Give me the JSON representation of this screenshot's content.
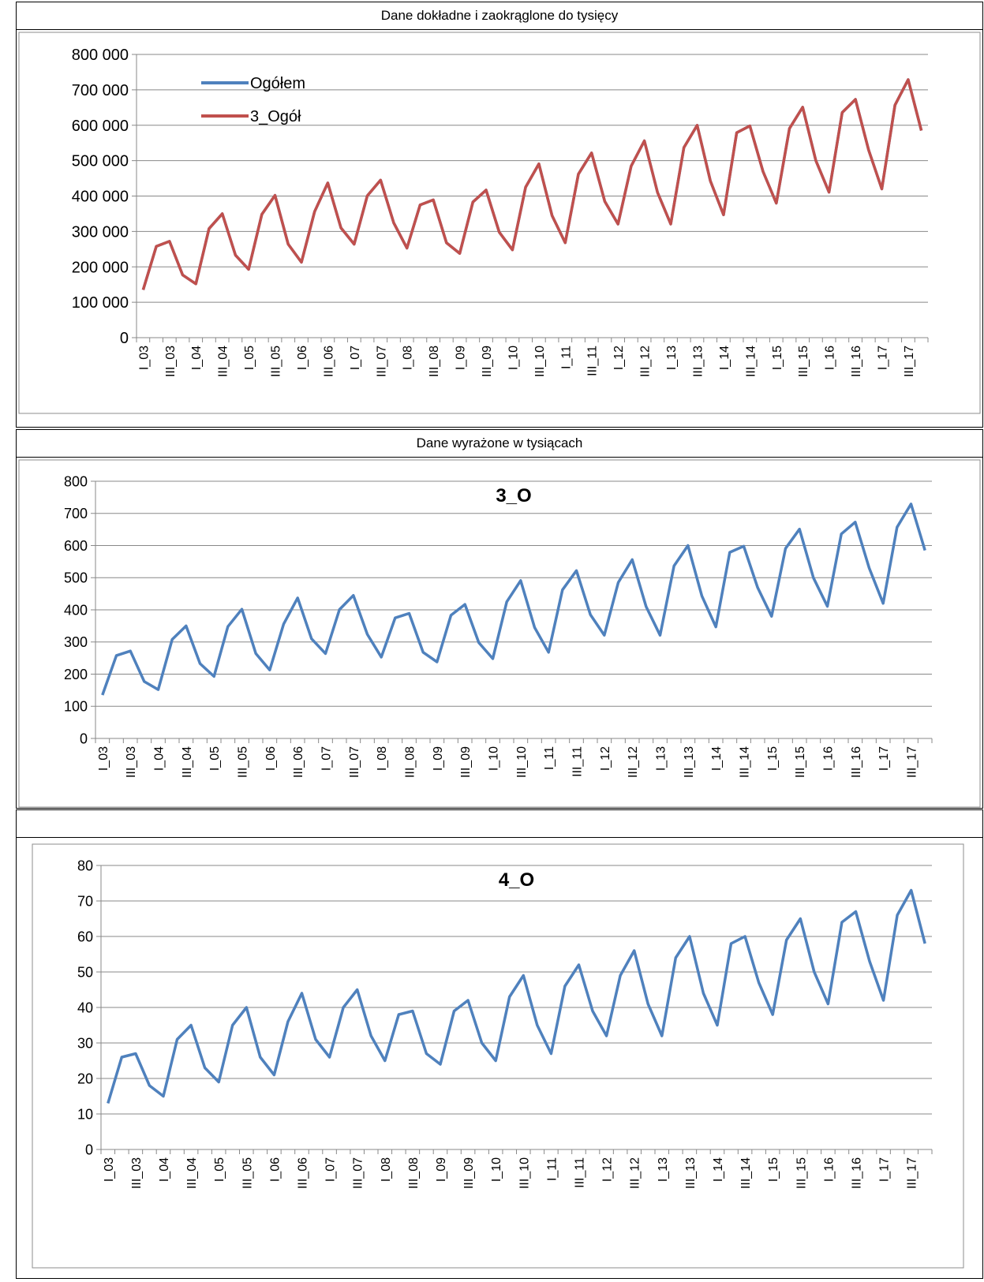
{
  "sections": [
    {
      "title": "Dane dokładne i zaokrąglone do tysięcy"
    },
    {
      "title": "Dane wyrażone w tysiącach"
    },
    {
      "title": ""
    }
  ],
  "colors": {
    "blue": "#4F81BD",
    "red": "#C0504D",
    "grid": "#888888"
  },
  "chart_data": [
    {
      "type": "line",
      "title": "",
      "ylim": [
        0,
        800000
      ],
      "yticks": [
        "0",
        "100 000",
        "200 000",
        "300 000",
        "400 000",
        "500 000",
        "600 000",
        "700 000",
        "800 000"
      ],
      "legend": "top-left",
      "x_tick_labels": [
        "I_03",
        "III_03",
        "I_04",
        "III_04",
        "I_05",
        "III_05",
        "I_06",
        "III_06",
        "I_07",
        "III_07",
        "I_08",
        "III_08",
        "I_09",
        "III_09",
        "I_10",
        "III_10",
        "I_11",
        "III_11",
        "I_12",
        "III_12",
        "I_13",
        "III_13",
        "I_14",
        "III_14",
        "I_15",
        "III_15",
        "I_16",
        "III_16",
        "I_17",
        "III_17"
      ],
      "series": [
        {
          "name": "Ogółem",
          "color": "#4F81BD",
          "values": [
            135000,
            258000,
            272000,
            177000,
            152000,
            308000,
            350000,
            233000,
            193000,
            348000,
            402000,
            264000,
            213000,
            356000,
            437000,
            310000,
            264000,
            401000,
            445000,
            324000,
            253000,
            375000,
            389000,
            268000,
            238000,
            383000,
            417000,
            298000,
            248000,
            425000,
            491000,
            345000,
            268000,
            462000,
            522000,
            385000,
            321000,
            485000,
            556000,
            410000,
            321000,
            537000,
            600000,
            443000,
            347000,
            579000,
            598000,
            469000,
            380000,
            591000,
            651000,
            500000,
            411000,
            636000,
            673000,
            530000,
            420000,
            657000,
            729000,
            585000
          ]
        },
        {
          "name": "3_Ogół",
          "color": "#C0504D",
          "values": [
            135000,
            258000,
            272000,
            177000,
            152000,
            308000,
            350000,
            233000,
            193000,
            348000,
            402000,
            264000,
            213000,
            356000,
            437000,
            310000,
            264000,
            401000,
            445000,
            324000,
            253000,
            375000,
            389000,
            268000,
            238000,
            383000,
            417000,
            298000,
            248000,
            425000,
            491000,
            345000,
            268000,
            462000,
            522000,
            385000,
            321000,
            485000,
            556000,
            410000,
            321000,
            537000,
            600000,
            443000,
            347000,
            579000,
            598000,
            469000,
            380000,
            591000,
            651000,
            500000,
            411000,
            636000,
            673000,
            530000,
            420000,
            657000,
            729000,
            585000
          ]
        }
      ]
    },
    {
      "type": "line",
      "title": "3_O",
      "ylim": [
        0,
        800
      ],
      "yticks": [
        "0",
        "100",
        "200",
        "300",
        "400",
        "500",
        "600",
        "700",
        "800"
      ],
      "x_tick_labels": [
        "I_03",
        "III_03",
        "I_04",
        "III_04",
        "I_05",
        "III_05",
        "I_06",
        "III_06",
        "I_07",
        "III_07",
        "I_08",
        "III_08",
        "I_09",
        "III_09",
        "I_10",
        "III_10",
        "I_11",
        "III_11",
        "I_12",
        "III_12",
        "I_13",
        "III_13",
        "I_14",
        "III_14",
        "I_15",
        "III_15",
        "I_16",
        "III_16",
        "I_17",
        "III_17"
      ],
      "series": [
        {
          "color": "#4F81BD",
          "values": [
            135,
            258,
            272,
            177,
            152,
            308,
            350,
            233,
            193,
            348,
            402,
            264,
            213,
            356,
            437,
            310,
            264,
            401,
            445,
            324,
            253,
            375,
            389,
            268,
            238,
            383,
            417,
            298,
            248,
            425,
            491,
            345,
            268,
            462,
            522,
            385,
            321,
            485,
            556,
            410,
            321,
            537,
            600,
            443,
            347,
            579,
            598,
            469,
            380,
            591,
            651,
            500,
            411,
            636,
            673,
            530,
            420,
            657,
            729,
            585
          ]
        }
      ]
    },
    {
      "type": "line",
      "title": "4_O",
      "ylim": [
        0,
        80
      ],
      "yticks": [
        "0",
        "10",
        "20",
        "30",
        "40",
        "50",
        "60",
        "70",
        "80"
      ],
      "x_tick_labels": [
        "I_03",
        "III_03",
        "I_04",
        "III_04",
        "I_05",
        "III_05",
        "I_06",
        "III_06",
        "I_07",
        "III_07",
        "I_08",
        "III_08",
        "I_09",
        "III_09",
        "I_10",
        "III_10",
        "I_11",
        "III_11",
        "I_12",
        "III_12",
        "I_13",
        "III_13",
        "I_14",
        "III_14",
        "I_15",
        "III_15",
        "I_16",
        "III_16",
        "I_17",
        "III_17"
      ],
      "series": [
        {
          "color": "#4F81BD",
          "values": [
            13,
            26,
            27,
            18,
            15,
            31,
            35,
            23,
            19,
            35,
            40,
            26,
            21,
            36,
            44,
            31,
            26,
            40,
            45,
            32,
            25,
            38,
            39,
            27,
            24,
            39,
            42,
            30,
            25,
            43,
            49,
            35,
            27,
            46,
            52,
            39,
            32,
            49,
            56,
            41,
            32,
            54,
            60,
            44,
            35,
            58,
            60,
            47,
            38,
            59,
            65,
            50,
            41,
            64,
            67,
            53,
            42,
            66,
            73,
            58
          ]
        }
      ]
    }
  ]
}
